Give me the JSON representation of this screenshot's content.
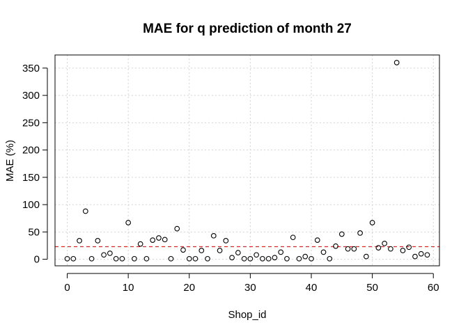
{
  "chart_data": {
    "type": "scatter",
    "title": "MAE for q prediction of month 27",
    "xlabel": "Shop_id",
    "ylabel": "MAE (%)",
    "xlim": [
      -2,
      61
    ],
    "ylim": [
      -12,
      374
    ],
    "xticks": [
      0,
      10,
      20,
      30,
      40,
      50,
      60
    ],
    "yticks": [
      0,
      50,
      100,
      150,
      200,
      250,
      300,
      350
    ],
    "grid": true,
    "point_style": "open-circle",
    "reference_line": {
      "orientation": "horizontal",
      "y": 23,
      "color": "#d62728",
      "style": "dashed"
    },
    "x": [
      0,
      1,
      2,
      3,
      4,
      5,
      6,
      7,
      8,
      9,
      10,
      11,
      12,
      13,
      14,
      15,
      16,
      17,
      18,
      19,
      20,
      21,
      22,
      23,
      24,
      25,
      26,
      27,
      28,
      29,
      30,
      31,
      32,
      33,
      34,
      35,
      36,
      37,
      38,
      39,
      40,
      41,
      42,
      43,
      44,
      45,
      46,
      47,
      48,
      49,
      50,
      51,
      52,
      53,
      54,
      55,
      56,
      57,
      58,
      59
    ],
    "y": [
      1,
      1,
      34,
      88,
      1,
      34,
      8,
      11,
      1,
      1,
      67,
      1,
      28,
      1,
      35,
      39,
      36,
      1,
      56,
      17,
      1,
      1,
      16,
      1,
      43,
      16,
      34,
      3,
      12,
      1,
      1,
      8,
      1,
      1,
      3,
      13,
      1,
      40,
      1,
      5,
      1,
      35,
      13,
      1,
      24,
      46,
      19,
      19,
      48,
      5,
      67,
      21,
      29,
      19,
      360,
      16,
      22,
      5,
      10,
      8
    ]
  }
}
